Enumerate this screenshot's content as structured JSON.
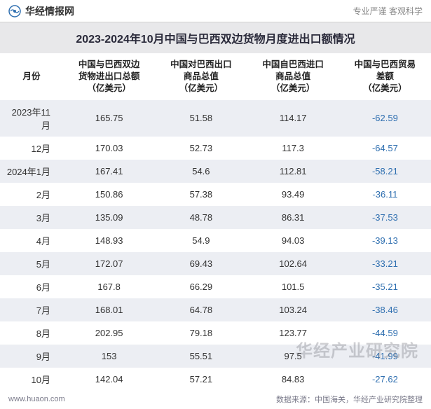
{
  "header": {
    "brand": "华经情报网",
    "logo_fill": "#2f6fb0",
    "slogan": "专业严谨   客观科学"
  },
  "title": "2023-2024年10月中国与巴西双边货物月度进出口额情况",
  "columns": [
    "月份",
    "中国与巴西双边\n货物进出口总额\n（亿美元）",
    "中国对巴西出口\n商品总值\n（亿美元）",
    "中国自巴西进口\n商品总值\n（亿美元）",
    "中国与巴西贸易\n差额\n（亿美元）"
  ],
  "rows": [
    {
      "month": "2023年11月",
      "total": "165.75",
      "export": "51.58",
      "import": "114.17",
      "balance": "-62.59"
    },
    {
      "month": "12月",
      "total": "170.03",
      "export": "52.73",
      "import": "117.3",
      "balance": "-64.57"
    },
    {
      "month": "2024年1月",
      "total": "167.41",
      "export": "54.6",
      "import": "112.81",
      "balance": "-58.21"
    },
    {
      "month": "2月",
      "total": "150.86",
      "export": "57.38",
      "import": "93.49",
      "balance": "-36.11"
    },
    {
      "month": "3月",
      "total": "135.09",
      "export": "48.78",
      "import": "86.31",
      "balance": "-37.53"
    },
    {
      "month": "4月",
      "total": "148.93",
      "export": "54.9",
      "import": "94.03",
      "balance": "-39.13"
    },
    {
      "month": "5月",
      "total": "172.07",
      "export": "69.43",
      "import": "102.64",
      "balance": "-33.21"
    },
    {
      "month": "6月",
      "total": "167.8",
      "export": "66.29",
      "import": "101.5",
      "balance": "-35.21"
    },
    {
      "month": "7月",
      "total": "168.01",
      "export": "64.78",
      "import": "103.24",
      "balance": "-38.46"
    },
    {
      "month": "8月",
      "total": "202.95",
      "export": "79.18",
      "import": "123.77",
      "balance": "-44.59"
    },
    {
      "month": "9月",
      "total": "153",
      "export": "55.51",
      "import": "97.5",
      "balance": "-41.99"
    },
    {
      "month": "10月",
      "total": "142.04",
      "export": "57.21",
      "import": "84.83",
      "balance": "-27.62"
    }
  ],
  "footer": {
    "site": "www.huaon.com",
    "source": "数据来源：中国海关，华经产业研究院整理"
  },
  "watermark": "华经产业研究院",
  "colors": {
    "stripe": "#eceef3",
    "title_bg": "#e8e8ea",
    "neg": "#2f6fb0",
    "text": "#333333"
  }
}
